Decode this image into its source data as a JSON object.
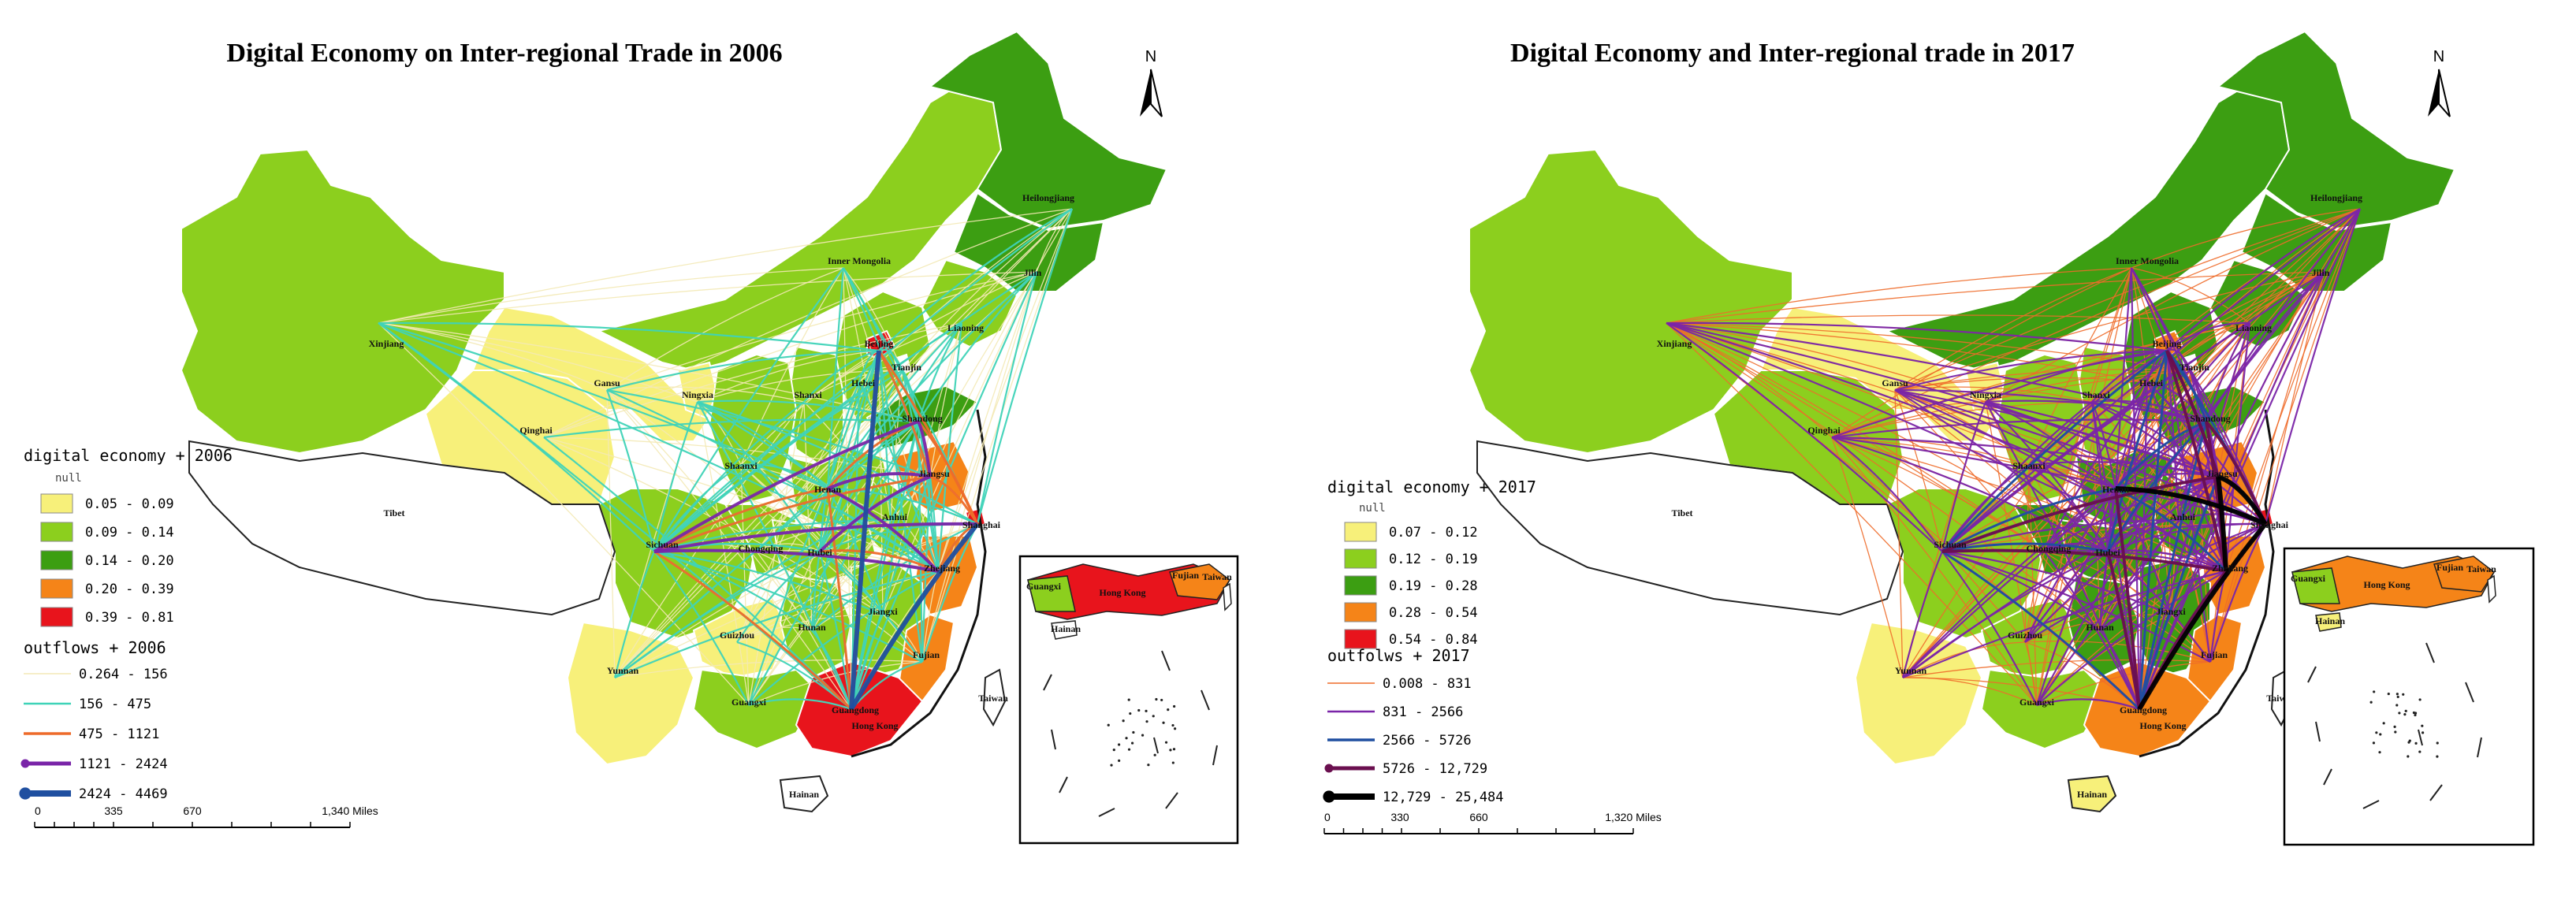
{
  "maps": [
    {
      "title": "Digital Economy on Inter-regional Trade in 2006",
      "north": "N",
      "legend_de_title": "digital economy + 2006",
      "legend_null": "null",
      "de_classes": [
        {
          "label": "0.05 - 0.09",
          "color": "#f7f07a"
        },
        {
          "label": "0.09 - 0.14",
          "color": "#8ccf1e"
        },
        {
          "label": "0.14 - 0.20",
          "color": "#3c9e12"
        },
        {
          "label": "0.20 - 0.39",
          "color": "#f58418"
        },
        {
          "label": "0.39 - 0.81",
          "color": "#e8141c"
        }
      ],
      "legend_flow_title": "outflows + 2006",
      "flow_classes": [
        {
          "label": "0.264 - 156",
          "color": "#f3e9b5"
        },
        {
          "label": "156 - 475",
          "color": "#3fd3b8"
        },
        {
          "label": "475 - 1121",
          "color": "#ee6b2a"
        },
        {
          "label": "1121 - 2424",
          "color": "#7a25a8"
        },
        {
          "label": "2424 - 4469",
          "color": "#1f4fa0"
        }
      ],
      "scale": {
        "ticks": [
          "0",
          "335",
          "670",
          "1,340 Miles"
        ]
      },
      "provinces": {
        "Xinjiang": "Xinjiang",
        "Tibet": "Tibet",
        "Qinghai": "Qinghai",
        "Gansu": "Gansu",
        "InnerMongolia": "Inner Mongolia",
        "Heilongjiang": "Heilongjiang",
        "Jilin": "Jilin",
        "Liaoning": "Liaoning",
        "Beijing": "Beijing",
        "Tianjin": "Tianjin",
        "Hebei": "Hebei",
        "Shanxi": "Shanxi",
        "Shandong": "Shandong",
        "Ningxia": "Ningxia",
        "Shaanxi": "Shaanxi",
        "Henan": "Henan",
        "Jiangsu": "Jiangsu",
        "Anhui": "Anhui",
        "Shanghai": "Shanghai",
        "Sichuan": "Sichuan",
        "Chongqing": "Chongqing",
        "Hubei": "Hubei",
        "Zhejiang": "Zhejiang",
        "Guizhou": "Guizhou",
        "Hunan": "Hunan",
        "Jiangxi": "Jiangxi",
        "Fujian": "Fujian",
        "Yunnan": "Yunnan",
        "Guangxi": "Guangxi",
        "Guangdong": "Guangdong",
        "HongKong": "Hong Kong",
        "Hainan": "Hainan",
        "Taiwan": "Taiwan",
        "InsetHainan": "Hainan",
        "InsetGuangxi": "Guangxi",
        "InsetHongKong": "Hong Kong",
        "InsetTaiwan": "Taiwan",
        "InsetFujian": "Fujian"
      },
      "province_colors": {
        "Xinjiang": "#8ccf1e",
        "Tibet": "#ffffff",
        "Qinghai": "#f7f07a",
        "Gansu": "#f7f07a",
        "InnerMongolia": "#8ccf1e",
        "Heilongjiang": "#3c9e12",
        "Jilin": "#3c9e12",
        "Liaoning": "#8ccf1e",
        "Ningxia": "#f7f07a",
        "Shaanxi": "#8ccf1e",
        "Shanxi": "#8ccf1e",
        "Hebei": "#8ccf1e",
        "Beijing": "#e8141c",
        "Shandong": "#3c9e12",
        "Henan": "#8ccf1e",
        "Jiangsu": "#f58418",
        "Anhui": "#8ccf1e",
        "Shanghai": "#e8141c",
        "Sichuan": "#8ccf1e",
        "Chongqing": "#8ccf1e",
        "Hubei": "#8ccf1e",
        "Zhejiang": "#f58418",
        "Guizhou": "#f7f07a",
        "Hunan": "#8ccf1e",
        "Jiangxi": "#8ccf1e",
        "Fujian": "#f58418",
        "Yunnan": "#f7f07a",
        "Guangxi": "#8ccf1e",
        "Guangdong": "#e8141c",
        "Hainan": "#ffffff",
        "Taiwan": "#ffffff"
      }
    },
    {
      "title": "Digital Economy and Inter-regional trade in 2017",
      "north": "N",
      "legend_de_title": "digital economy + 2017",
      "legend_null": "null",
      "de_classes": [
        {
          "label": "0.07 - 0.12",
          "color": "#f7f07a"
        },
        {
          "label": "0.12 - 0.19",
          "color": "#8ccf1e"
        },
        {
          "label": "0.19 - 0.28",
          "color": "#3c9e12"
        },
        {
          "label": "0.28 - 0.54",
          "color": "#f58418"
        },
        {
          "label": "0.54 - 0.84",
          "color": "#e8141c"
        }
      ],
      "legend_flow_title": "outfolws + 2017",
      "flow_classes": [
        {
          "label": "0.008 - 831",
          "color": "#ee6b2a"
        },
        {
          "label": "831 - 2566",
          "color": "#7a25a8"
        },
        {
          "label": "2566 - 5726",
          "color": "#1f4fa0"
        },
        {
          "label": "5726 - 12,729",
          "color": "#6a0f4f"
        },
        {
          "label": "12,729 - 25,484",
          "color": "#000000"
        }
      ],
      "scale": {
        "ticks": [
          "0",
          "330",
          "660",
          "1,320 Miles"
        ]
      },
      "provinces": {
        "Xinjiang": "Xinjiang",
        "Tibet": "Tibet",
        "Qinghai": "Qinghai",
        "Gansu": "Gansu",
        "InnerMongolia": "Inner Mongolia",
        "Heilongjiang": "Heilongjiang",
        "Jilin": "Jilin",
        "Liaoning": "Liaoning",
        "Beijing": "Beijing",
        "Tianjin": "Tianjin",
        "Hebei": "Hebei",
        "Shanxi": "Shanxi",
        "Shandong": "Shandong",
        "Ningxia": "Ningxia",
        "Shaanxi": "Shaanxi",
        "Henan": "Henan",
        "Jiangsu": "Jiangsu",
        "Anhui": "Anhui",
        "Shanghai": "Shanghai",
        "Sichuan": "Sichuan",
        "Chongqing": "Chongqing",
        "Hubei": "Hubei",
        "Zhejiang": "Zhejiang",
        "Guizhou": "Guizhou",
        "Hunan": "Hunan",
        "Jiangxi": "Jiangxi",
        "Fujian": "Fujian",
        "Yunnan": "Yunnan",
        "Guangxi": "Guangxi",
        "Guangdong": "Guangdong",
        "HongKong": "Hong Kong",
        "Hainan": "Hainan",
        "Taiwan": "Taiwan",
        "InsetHainan": "Hainan",
        "InsetGuangxi": "Guangxi",
        "InsetHongKong": "Hong Kong",
        "InsetTaiwan": "Taiwan",
        "InsetFujian": "Fujian"
      },
      "province_colors": {
        "Xinjiang": "#8ccf1e",
        "Tibet": "#ffffff",
        "Qinghai": "#8ccf1e",
        "Gansu": "#f7f07a",
        "InnerMongolia": "#3c9e12",
        "Heilongjiang": "#3c9e12",
        "Jilin": "#3c9e12",
        "Liaoning": "#3c9e12",
        "Ningxia": "#f7f07a",
        "Shaanxi": "#8ccf1e",
        "Shanxi": "#8ccf1e",
        "Hebei": "#3c9e12",
        "Beijing": "#f58418",
        "Shandong": "#3c9e12",
        "Henan": "#3c9e12",
        "Jiangsu": "#f58418",
        "Anhui": "#3c9e12",
        "Shanghai": "#e8141c",
        "Sichuan": "#8ccf1e",
        "Chongqing": "#3c9e12",
        "Hubei": "#3c9e12",
        "Zhejiang": "#f58418",
        "Guizhou": "#8ccf1e",
        "Hunan": "#3c9e12",
        "Jiangxi": "#3c9e12",
        "Fujian": "#f58418",
        "Yunnan": "#f7f07a",
        "Guangxi": "#8ccf1e",
        "Guangdong": "#f58418",
        "Hainan": "#f7f07a",
        "Taiwan": "#ffffff"
      }
    }
  ]
}
